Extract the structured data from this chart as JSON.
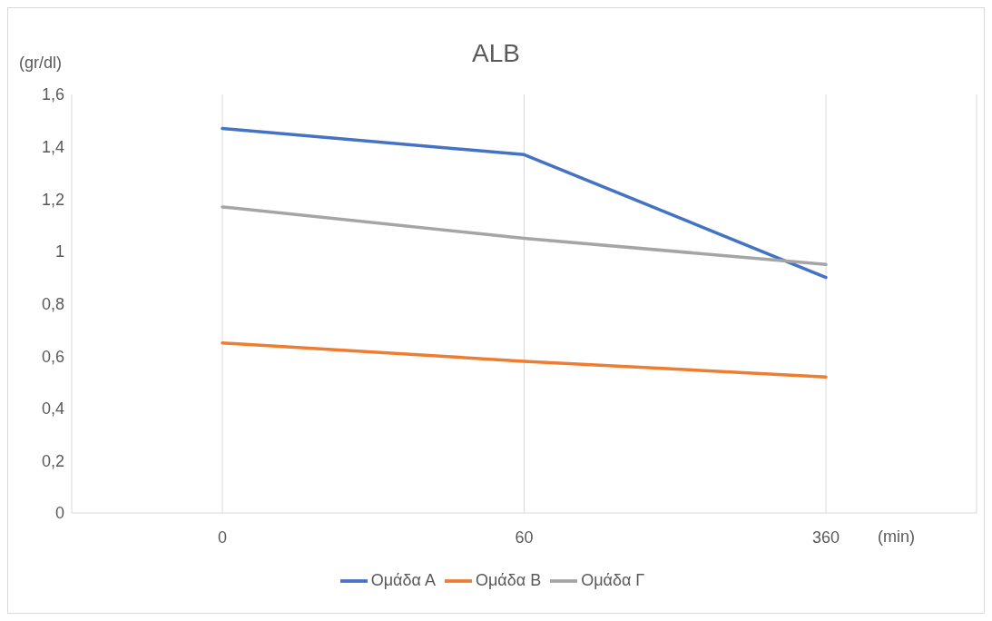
{
  "chart_data": {
    "type": "line",
    "title": "ALB",
    "ylabel": "(gr/dl)",
    "xlabel": "(min)",
    "categories": [
      "0",
      "60",
      "360"
    ],
    "series": [
      {
        "name": "Ομάδα Α",
        "color": "#4472c4",
        "values": [
          1.47,
          1.37,
          0.9
        ]
      },
      {
        "name": "Ομάδα Β",
        "color": "#ed7d31",
        "values": [
          0.65,
          0.58,
          0.52
        ]
      },
      {
        "name": "Ομάδα Γ",
        "color": "#a5a5a5",
        "values": [
          1.17,
          1.05,
          0.95
        ]
      }
    ],
    "ylim": [
      0,
      1.6
    ],
    "yticks": [
      0,
      {
        "value": 0.2,
        "label": "0,2"
      },
      {
        "value": 0.4,
        "label": "0,4"
      },
      {
        "value": 0.6,
        "label": "0,6"
      },
      {
        "value": 0.8,
        "label": "0,8"
      },
      1,
      {
        "value": 1.2,
        "label": "1,2"
      },
      {
        "value": 1.4,
        "label": "1,4"
      },
      {
        "value": 1.6,
        "label": "1,6"
      }
    ],
    "grid": "x",
    "legend": "bottom",
    "marker": "none",
    "line_style": "solid"
  }
}
